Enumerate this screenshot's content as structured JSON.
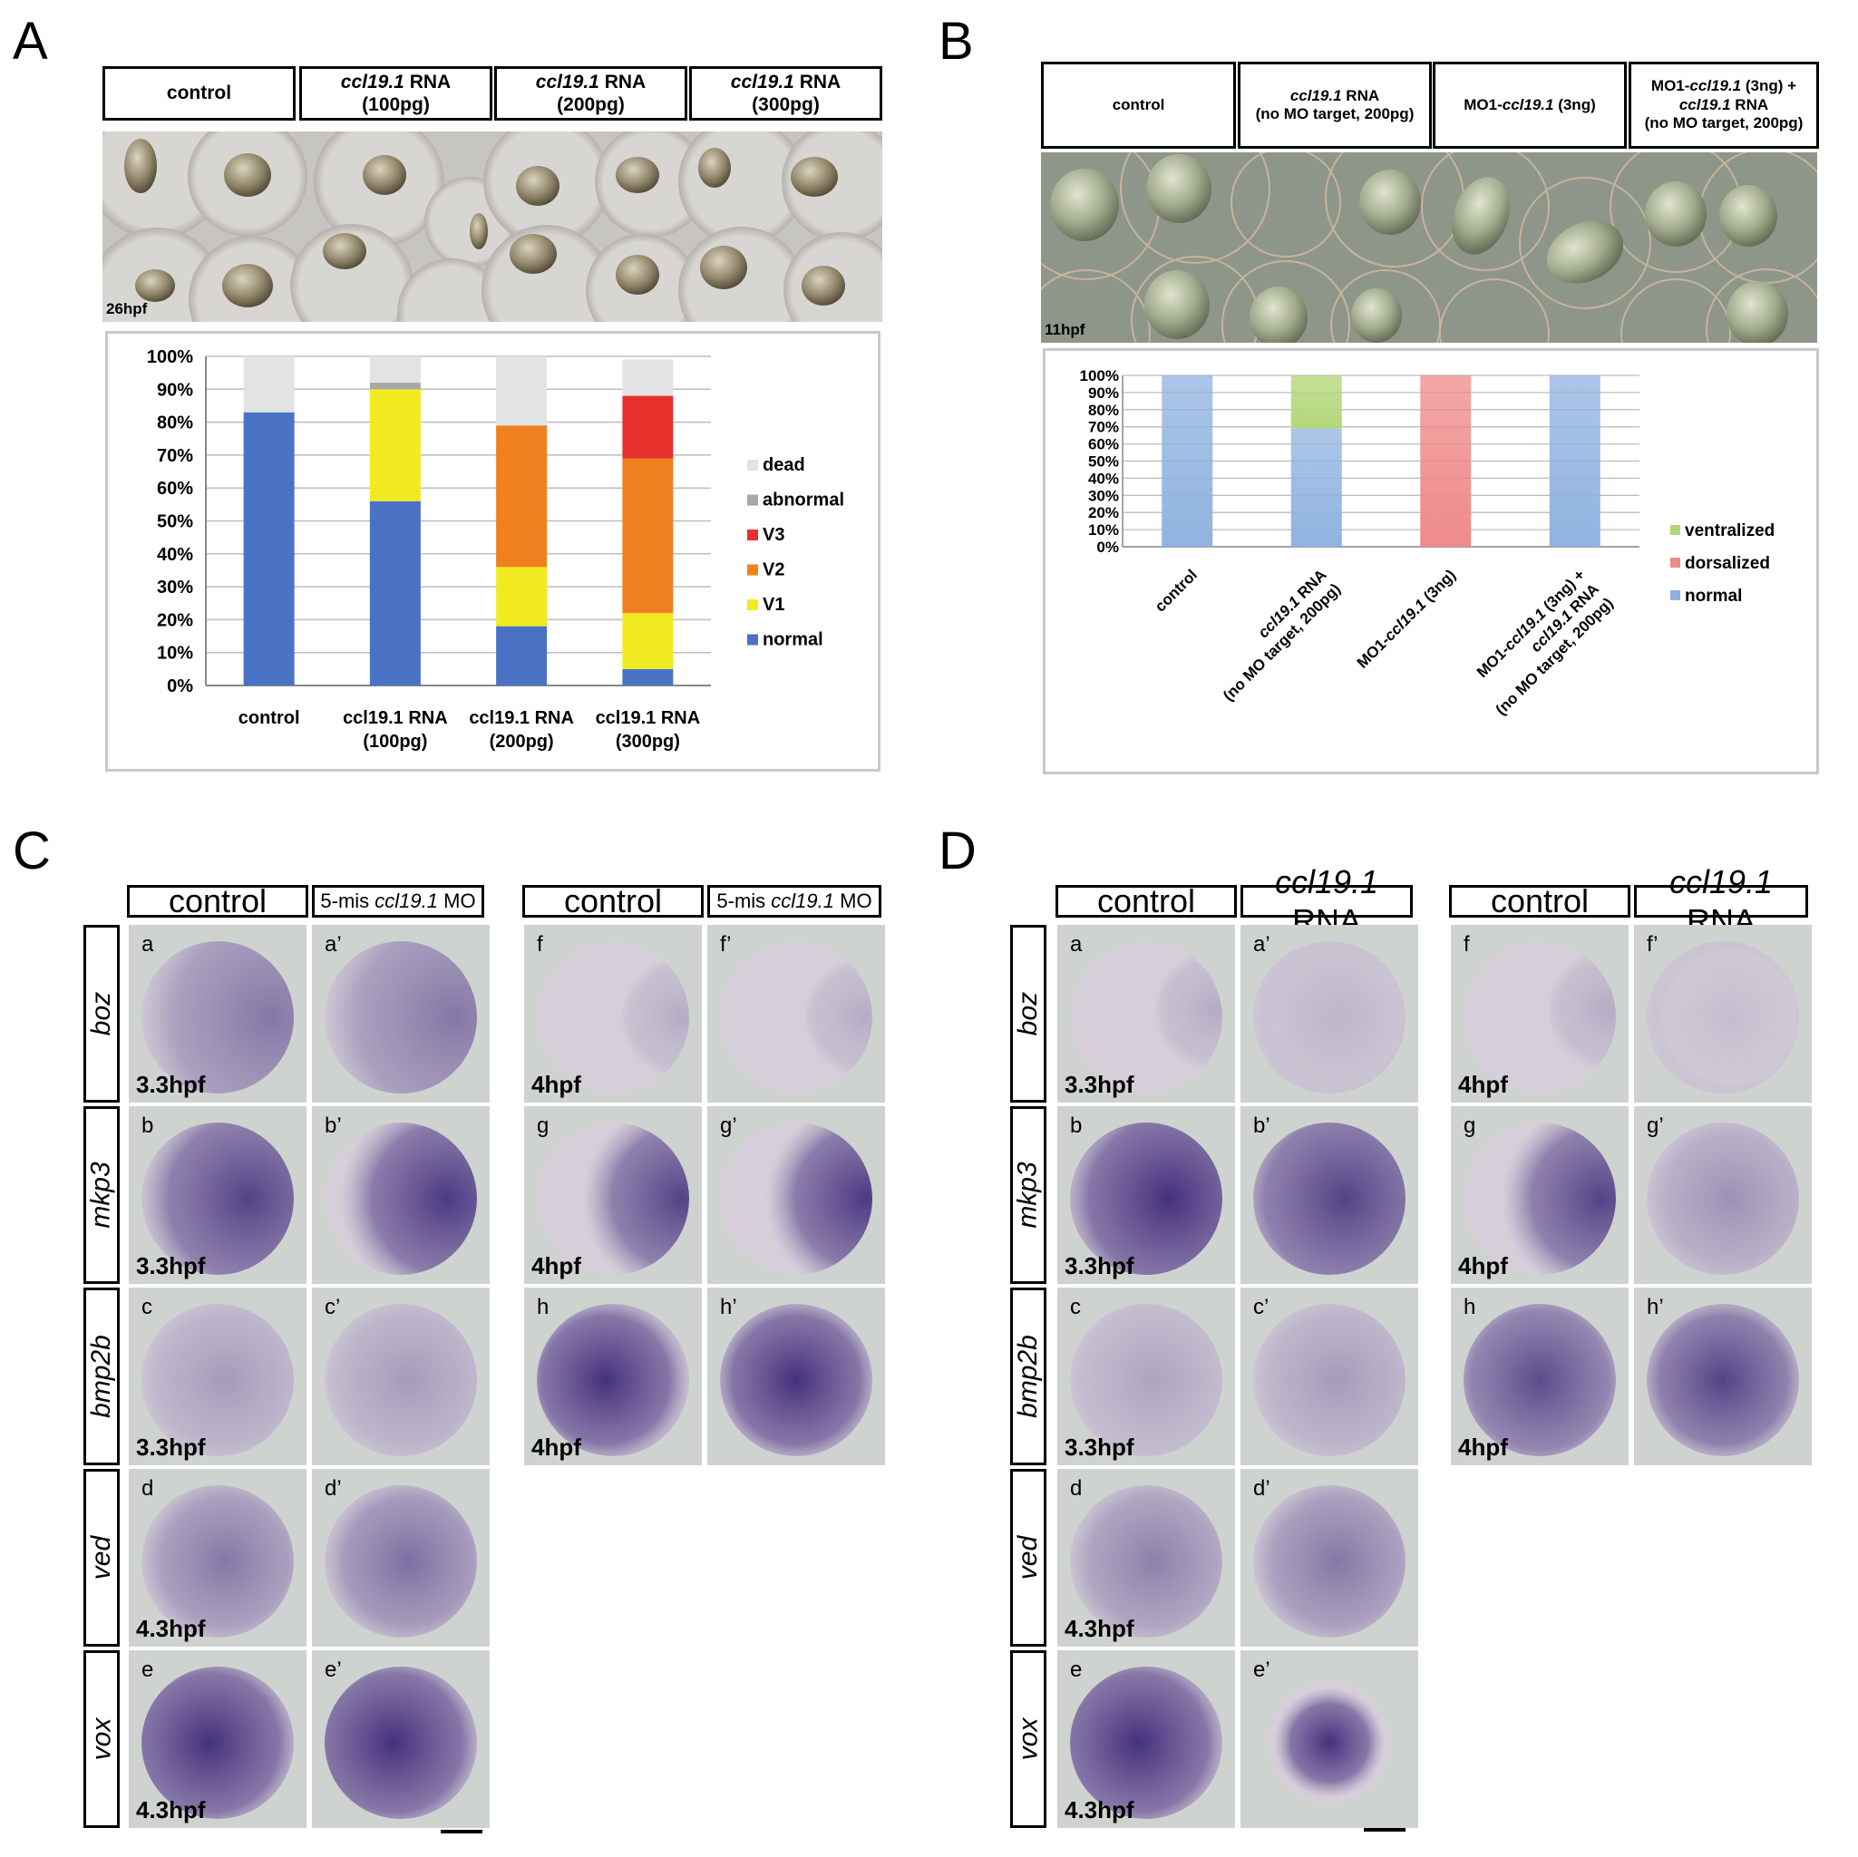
{
  "panel_letters": [
    "A",
    "B",
    "C",
    "D"
  ],
  "A": {
    "headers": [
      {
        "plain": "control",
        "gene": "",
        "rest": "",
        "line2": ""
      },
      {
        "plain": "",
        "gene": "ccl19.1",
        "rest": " RNA",
        "line2": "(100pg)"
      },
      {
        "plain": "",
        "gene": "ccl19.1",
        "rest": " RNA",
        "line2": "(200pg)"
      },
      {
        "plain": "",
        "gene": "ccl19.1",
        "rest": " RNA",
        "line2": "(300pg)"
      }
    ],
    "photo_stage": "26hpf"
  },
  "B": {
    "headers": [
      {
        "l1a": "control",
        "l1g": "",
        "l1b": "",
        "l2a": "",
        "l2g": "",
        "l2b": "",
        "l3": ""
      },
      {
        "l1a": "",
        "l1g": "ccl19.1",
        "l1b": " RNA",
        "l2a": "(no MO target, 200pg)",
        "l2g": "",
        "l2b": "",
        "l3": ""
      },
      {
        "l1a": "MO1-",
        "l1g": "ccl19.1",
        "l1b": " (3ng)",
        "l2a": "",
        "l2g": "",
        "l2b": "",
        "l3": ""
      },
      {
        "l1a": "MO1-",
        "l1g": "ccl19.1",
        "l1b": " (3ng) +",
        "l2a": "",
        "l2g": "ccl19.1",
        "l2b": " RNA",
        "l3": "(no MO target, 200pg)"
      }
    ],
    "photo_stage": "11hpf"
  },
  "chart_data": [
    {
      "type": "bar",
      "stacked": true,
      "categories": [
        "control",
        "ccl19.1 RNA (100pg)",
        "ccl19.1 RNA (200pg)",
        "ccl19.1 RNA (300pg)"
      ],
      "category_lines": [
        [
          "control",
          ""
        ],
        [
          "ccl19.1 RNA",
          "(100pg)"
        ],
        [
          "ccl19.1 RNA",
          "(200pg)"
        ],
        [
          "ccl19.1 RNA",
          "(300pg)"
        ]
      ],
      "yticks": [
        "0%",
        "10%",
        "20%",
        "30%",
        "40%",
        "50%",
        "60%",
        "70%",
        "80%",
        "90%",
        "100%"
      ],
      "ylim": [
        0,
        100
      ],
      "grid": true,
      "legend_position": "right",
      "series": [
        {
          "name": "normal",
          "color": "#4a72c4",
          "values": [
            83,
            56,
            18,
            5
          ]
        },
        {
          "name": "V1",
          "color": "#f2eb21",
          "values": [
            0,
            34,
            18,
            17
          ]
        },
        {
          "name": "V2",
          "color": "#f0801f",
          "values": [
            0,
            0,
            43,
            47
          ]
        },
        {
          "name": "V3",
          "color": "#e8302c",
          "values": [
            0,
            0,
            0,
            19
          ]
        },
        {
          "name": "abnormal",
          "color": "#a8a8a8",
          "values": [
            0,
            2,
            0,
            0
          ]
        },
        {
          "name": "dead",
          "color": "#e2e3e5",
          "values": [
            17,
            8,
            21,
            11
          ]
        }
      ],
      "legend_order": [
        "dead",
        "abnormal",
        "V3",
        "V2",
        "V1",
        "normal"
      ]
    },
    {
      "type": "bar",
      "stacked": true,
      "categories": [
        "control",
        "ccl19.1 RNA (no MO target, 200pg)",
        "MO1-ccl19.1 (3ng)",
        "MO1-ccl19.1 (3ng) + ccl19.1 RNA (no MO target, 200pg)"
      ],
      "category_lines": [
        [
          {
            "t": "control"
          }
        ],
        [
          {
            "t": "ccl19.1",
            "i": true
          },
          {
            "t": " RNA"
          },
          {
            "br": true
          },
          {
            "t": "(no MO target, 200pg)"
          }
        ],
        [
          {
            "t": "MO1-"
          },
          {
            "t": "ccl19.1",
            "i": true
          },
          {
            "t": " (3ng)"
          }
        ],
        [
          {
            "t": "MO1-"
          },
          {
            "t": "ccl19.1",
            "i": true
          },
          {
            "t": " (3ng) +"
          },
          {
            "br": true
          },
          {
            "t": "ccl19.1",
            "i": true
          },
          {
            "t": " RNA"
          },
          {
            "br": true
          },
          {
            "t": "(no MO target, 200pg)"
          }
        ]
      ],
      "yticks": [
        "0%",
        "10%",
        "20%",
        "30%",
        "40%",
        "50%",
        "60%",
        "70%",
        "80%",
        "90%",
        "100%"
      ],
      "ylim": [
        0,
        100
      ],
      "grid": true,
      "legend_position": "right",
      "series": [
        {
          "name": "normal",
          "color": "#8fb3e0",
          "values": [
            100,
            69,
            0,
            100
          ]
        },
        {
          "name": "dorsalized",
          "color": "#ef8a8a",
          "values": [
            0,
            0,
            100,
            0
          ]
        },
        {
          "name": "ventralized",
          "color": "#b2d67a",
          "values": [
            0,
            31,
            0,
            0
          ]
        }
      ],
      "legend_order": [
        "ventralized",
        "dorsalized",
        "normal"
      ]
    }
  ],
  "C": {
    "genes": [
      "boz",
      "mkp3",
      "bmp2b",
      "ved",
      "vox"
    ],
    "headers_left": [
      "control",
      "5-mis ",
      "ccl19.1",
      " MO"
    ],
    "headers_right": [
      "control",
      "5-mis ",
      "ccl19.1",
      " MO"
    ],
    "left_panels": [
      {
        "l": "a",
        "s": "3.3hpf"
      },
      {
        "l": "a’",
        "s": ""
      },
      {
        "l": "b",
        "s": "3.3hpf"
      },
      {
        "l": "b’",
        "s": ""
      },
      {
        "l": "c",
        "s": "3.3hpf"
      },
      {
        "l": "c’",
        "s": ""
      },
      {
        "l": "d",
        "s": "4.3hpf"
      },
      {
        "l": "d’",
        "s": ""
      },
      {
        "l": "e",
        "s": "4.3hpf"
      },
      {
        "l": "e’",
        "s": ""
      }
    ],
    "right_panels": [
      {
        "l": "f",
        "s": "4hpf"
      },
      {
        "l": "f’",
        "s": ""
      },
      {
        "l": "g",
        "s": "4hpf"
      },
      {
        "l": "g’",
        "s": ""
      },
      {
        "l": "h",
        "s": "4hpf"
      },
      {
        "l": "h’",
        "s": ""
      }
    ]
  },
  "D": {
    "genes": [
      "boz",
      "mkp3",
      "bmp2b",
      "ved",
      "vox"
    ],
    "headers_left": [
      "control",
      "ccl19.1",
      " RNA"
    ],
    "headers_right": [
      "control",
      "ccl19.1",
      " RNA"
    ],
    "left_panels": [
      {
        "l": "a",
        "s": "3.3hpf"
      },
      {
        "l": "a’",
        "s": ""
      },
      {
        "l": "b",
        "s": "3.3hpf"
      },
      {
        "l": "b’",
        "s": ""
      },
      {
        "l": "c",
        "s": "3.3hpf"
      },
      {
        "l": "c’",
        "s": ""
      },
      {
        "l": "d",
        "s": "4.3hpf"
      },
      {
        "l": "d’",
        "s": ""
      },
      {
        "l": "e",
        "s": "4.3hpf"
      },
      {
        "l": "e’",
        "s": ""
      }
    ],
    "right_panels": [
      {
        "l": "f",
        "s": "4hpf"
      },
      {
        "l": "f’",
        "s": ""
      },
      {
        "l": "g",
        "s": "4hpf"
      },
      {
        "l": "g’",
        "s": ""
      },
      {
        "l": "h",
        "s": "4hpf"
      },
      {
        "l": "h’",
        "s": ""
      }
    ]
  }
}
